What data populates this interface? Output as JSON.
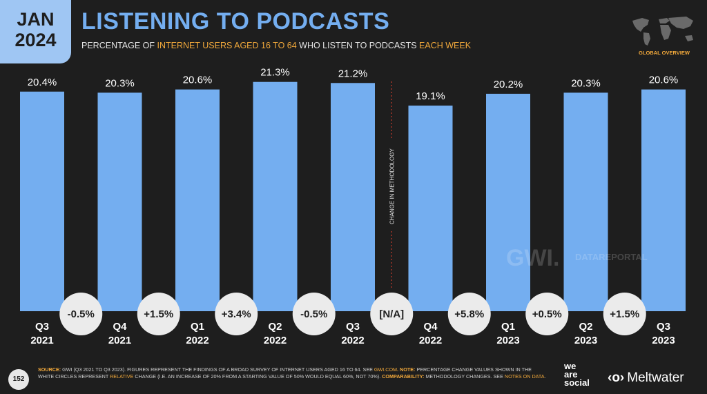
{
  "badge": {
    "month": "JAN",
    "year": "2024"
  },
  "title": "LISTENING TO PODCASTS",
  "subtitle": {
    "p1": "PERCENTAGE OF ",
    "p2": "INTERNET USERS AGED 16 TO 64",
    "p3": " WHO LISTEN TO PODCASTS ",
    "p4": "EACH WEEK"
  },
  "overview_label": "GLOBAL OVERVIEW",
  "methodology_label": "CHANGE IN METHODOLOGY",
  "watermark": {
    "gwi": "GWI.",
    "datareportal": "DATAREPORTAL"
  },
  "colors": {
    "bar": "#74aef0",
    "accent": "#f2a93b",
    "background": "#1e1e1e",
    "circle": "#ebebeb"
  },
  "chart_data": {
    "type": "bar",
    "title": "LISTENING TO PODCASTS",
    "categories": [
      [
        "Q3",
        "2021"
      ],
      [
        "Q4",
        "2021"
      ],
      [
        "Q1",
        "2022"
      ],
      [
        "Q2",
        "2022"
      ],
      [
        "Q3",
        "2022"
      ],
      [
        "Q4",
        "2022"
      ],
      [
        "Q1",
        "2023"
      ],
      [
        "Q2",
        "2023"
      ],
      [
        "Q3",
        "2023"
      ]
    ],
    "values": [
      20.4,
      20.3,
      20.6,
      21.3,
      21.2,
      19.1,
      20.2,
      20.3,
      20.6
    ],
    "value_labels": [
      "20.4%",
      "20.3%",
      "20.6%",
      "21.3%",
      "21.2%",
      "19.1%",
      "20.2%",
      "20.3%",
      "20.6%"
    ],
    "changes": [
      "-0.5%",
      "+1.5%",
      "+3.4%",
      "-0.5%",
      "[N/A]",
      "+5.8%",
      "+0.5%",
      "+1.5%"
    ],
    "methodology_break_after_index": 4,
    "ylim": [
      0,
      22.5
    ],
    "grid": false
  },
  "footer": {
    "page_number": "152",
    "source_key": "SOURCE:",
    "source_text": " GWI (Q3 2021 TO Q3 2023). FIGURES REPRESENT THE FINDINGS OF A BROAD SURVEY OF INTERNET USERS AGED 16 TO 64. SEE ",
    "source_link": "GWI.COM",
    "note_key": ". NOTE:",
    "note_text": " PERCENTAGE CHANGE VALUES SHOWN IN THE WHITE CIRCLES REPRESENT ",
    "note_relative": "RELATIVE",
    "note_text2": " CHANGE (I.E. AN INCREASE OF 20% FROM A STARTING VALUE OF 50% WOULD EQUAL 60%, NOT 70%). ",
    "comp_key": "COMPARABILITY:",
    "comp_text": " METHODOLOGY CHANGES. SEE ",
    "comp_link": "NOTES ON DATA",
    "comp_end": "."
  },
  "brands": {
    "we_are_social": [
      "we",
      "are",
      "social"
    ],
    "meltwater": "Meltwater",
    "meltwater_mark": "‹o›"
  }
}
